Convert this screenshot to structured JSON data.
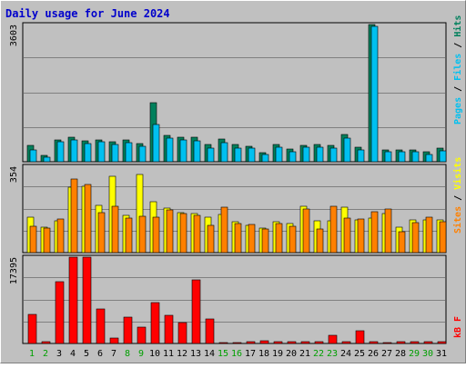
{
  "title": "Daily usage for June 2024",
  "colors": {
    "frame_bg": "#C0C0C0",
    "plot_bg": "#C0C0C0",
    "grid": "#808080",
    "title": "#0000CC",
    "hits": "#00805C",
    "files": "#00C0F0",
    "pages": "#00C0F0",
    "visits": "#FFFF00",
    "sites": "#FF8000",
    "kbytes": "#FF0000",
    "weekend_label": "#00A000",
    "weekday_label": "#000000"
  },
  "chart_data": [
    {
      "type": "bar",
      "panel": "hits-files-pages",
      "ymax_label": "3603",
      "ylim": [
        0,
        3603
      ],
      "x": [
        "1",
        "2",
        "3",
        "4",
        "5",
        "6",
        "7",
        "8",
        "9",
        "10",
        "11",
        "12",
        "13",
        "14",
        "15",
        "16",
        "17",
        "18",
        "19",
        "20",
        "21",
        "22",
        "23",
        "24",
        "25",
        "26",
        "27",
        "28",
        "29",
        "30",
        "31"
      ],
      "series": [
        {
          "name": "Hits",
          "values": [
            430,
            170,
            580,
            640,
            540,
            570,
            520,
            560,
            470,
            1540,
            690,
            650,
            630,
            440,
            590,
            460,
            410,
            240,
            440,
            340,
            430,
            450,
            430,
            700,
            390,
            3590,
            310,
            300,
            300,
            250,
            360
          ]
        },
        {
          "name": "Files",
          "values": [
            320,
            110,
            510,
            580,
            470,
            510,
            460,
            500,
            400,
            980,
            620,
            580,
            540,
            350,
            490,
            360,
            350,
            180,
            380,
            250,
            370,
            380,
            360,
            610,
            310,
            3530,
            260,
            250,
            250,
            200,
            280
          ]
        }
      ],
      "series_labels": [
        "Pages",
        "Files",
        "Hits"
      ]
    },
    {
      "type": "bar",
      "panel": "visits-sites",
      "ymax_label": "354",
      "ylim": [
        0,
        354
      ],
      "x": [
        "1",
        "2",
        "3",
        "4",
        "5",
        "6",
        "7",
        "8",
        "9",
        "10",
        "11",
        "12",
        "13",
        "14",
        "15",
        "16",
        "17",
        "18",
        "19",
        "20",
        "21",
        "22",
        "23",
        "24",
        "25",
        "26",
        "27",
        "28",
        "29",
        "30",
        "31"
      ],
      "series": [
        {
          "name": "Visits",
          "values": [
            145,
            105,
            130,
            265,
            270,
            193,
            308,
            150,
            318,
            205,
            180,
            163,
            160,
            145,
            155,
            125,
            110,
            100,
            125,
            117,
            187,
            130,
            130,
            185,
            132,
            140,
            160,
            105,
            132,
            134,
            132
          ]
        },
        {
          "name": "Sites",
          "values": [
            108,
            98,
            135,
            300,
            278,
            163,
            188,
            140,
            148,
            142,
            173,
            158,
            151,
            112,
            183,
            117,
            115,
            95,
            117,
            108,
            178,
            96,
            188,
            140,
            138,
            167,
            178,
            86,
            120,
            145,
            126
          ]
        }
      ],
      "series_labels": [
        "Sites",
        "Visits"
      ]
    },
    {
      "type": "bar",
      "panel": "kbytes",
      "ymax_label": "17395",
      "ylim": [
        0,
        17395
      ],
      "x": [
        "1",
        "2",
        "3",
        "4",
        "5",
        "6",
        "7",
        "8",
        "9",
        "10",
        "11",
        "12",
        "13",
        "14",
        "15",
        "16",
        "17",
        "18",
        "19",
        "20",
        "21",
        "22",
        "23",
        "24",
        "25",
        "26",
        "27",
        "28",
        "29",
        "30",
        "31"
      ],
      "series": [
        {
          "name": "kB F",
          "values": [
            5800,
            400,
            12300,
            17300,
            17300,
            6900,
            1100,
            5200,
            3200,
            8100,
            5600,
            4200,
            12600,
            4900,
            250,
            250,
            300,
            500,
            350,
            400,
            450,
            350,
            1600,
            300,
            2500,
            400,
            250,
            450,
            400,
            400,
            400
          ]
        }
      ],
      "series_labels": [
        "kB F"
      ]
    }
  ],
  "x_labels": [
    "1",
    "2",
    "3",
    "4",
    "5",
    "6",
    "7",
    "8",
    "9",
    "10",
    "11",
    "12",
    "13",
    "14",
    "15",
    "16",
    "17",
    "18",
    "19",
    "20",
    "21",
    "22",
    "23",
    "24",
    "25",
    "26",
    "27",
    "28",
    "29",
    "30",
    "31"
  ],
  "weekend_days": [
    "1",
    "2",
    "8",
    "9",
    "15",
    "16",
    "22",
    "23",
    "29",
    "30"
  ]
}
